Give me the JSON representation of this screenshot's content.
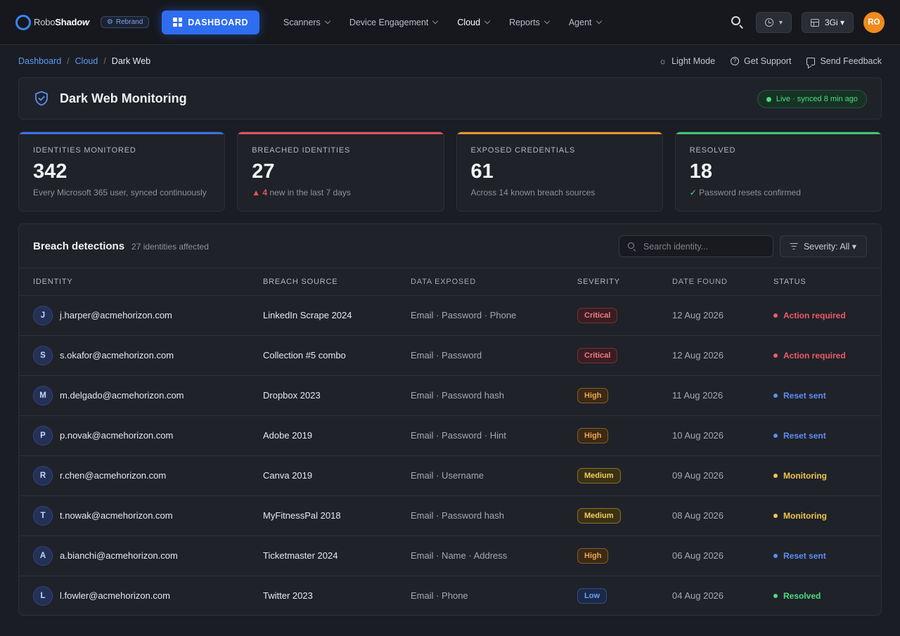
{
  "brand": {
    "logo_part1": "Robo",
    "logo_part2": "Shad",
    "logo_part3": "ow",
    "rebrand_label": "Rebrand",
    "dashboard_label": "DASHBOARD"
  },
  "nav": [
    {
      "label": "Scanners"
    },
    {
      "label": "Device Engagement"
    },
    {
      "label": "Cloud"
    },
    {
      "label": "Reports"
    },
    {
      "label": "Agent"
    }
  ],
  "topbar": {
    "history_caret": "▾",
    "workspace_label": "3Gi ▾",
    "avatar_initials": "RO"
  },
  "breadcrumb": {
    "items": [
      "Dashboard",
      "Cloud",
      "Dark Web"
    ],
    "separator": "/"
  },
  "utilities": {
    "light_mode": "Light Mode",
    "support": "Get Support",
    "feedback": "Send Feedback"
  },
  "page": {
    "title": "Dark Web Monitoring",
    "live_status": "Live · synced 8 min ago"
  },
  "stats": [
    {
      "label": "Identities monitored",
      "value": "342",
      "sub": "Every Microsoft 365 user, synced continuously",
      "accent": "#3b6fe8"
    },
    {
      "label": "Breached identities",
      "value": "27",
      "sub_prefix": "▲ 4",
      "sub": " new in the last 7 days",
      "accent": "#e5525c"
    },
    {
      "label": "Exposed credentials",
      "value": "61",
      "sub": "Across 14 known breach sources",
      "accent": "#f0952e"
    },
    {
      "label": "Resolved",
      "value": "18",
      "sub_prefix": "✓",
      "sub": " Password resets confirmed",
      "accent": "#3ec772"
    }
  ],
  "table": {
    "title": "Breach detections",
    "count": "27 identities affected",
    "search_placeholder": "Search identity...",
    "filter_label": "Severity: All ▾",
    "columns": [
      "IDENTITY",
      "BREACH SOURCE",
      "DATA EXPOSED",
      "SEVERITY",
      "DATE FOUND",
      "STATUS"
    ],
    "rows": [
      {
        "initial": "J",
        "identity": "j.harper@acmehorizon.com",
        "source": "LinkedIn Scrape 2024",
        "data": "Email · Password · Phone",
        "severity": "Critical",
        "date": "12 Aug 2026",
        "status": "Action required"
      },
      {
        "initial": "S",
        "identity": "s.okafor@acmehorizon.com",
        "source": "Collection #5 combo",
        "data": "Email · Password",
        "severity": "Critical",
        "date": "12 Aug 2026",
        "status": "Action required"
      },
      {
        "initial": "M",
        "identity": "m.delgado@acmehorizon.com",
        "source": "Dropbox 2023",
        "data": "Email · Password hash",
        "severity": "High",
        "date": "11 Aug 2026",
        "status": "Reset sent"
      },
      {
        "initial": "P",
        "identity": "p.novak@acmehorizon.com",
        "source": "Adobe 2019",
        "data": "Email · Password · Hint",
        "severity": "High",
        "date": "10 Aug 2026",
        "status": "Reset sent"
      },
      {
        "initial": "R",
        "identity": "r.chen@acmehorizon.com",
        "source": "Canva 2019",
        "data": "Email · Username",
        "severity": "Medium",
        "date": "09 Aug 2026",
        "status": "Monitoring"
      },
      {
        "initial": "T",
        "identity": "t.nowak@acmehorizon.com",
        "source": "MyFitnessPal 2018",
        "data": "Email · Password hash",
        "severity": "Medium",
        "date": "08 Aug 2026",
        "status": "Monitoring"
      },
      {
        "initial": "A",
        "identity": "a.bianchi@acmehorizon.com",
        "source": "Ticketmaster 2024",
        "data": "Email · Name · Address",
        "severity": "High",
        "date": "06 Aug 2026",
        "status": "Reset sent"
      },
      {
        "initial": "L",
        "identity": "l.fowler@acmehorizon.com",
        "source": "Twitter 2023",
        "data": "Email · Phone",
        "severity": "Low",
        "date": "04 Aug 2026",
        "status": "Resolved"
      }
    ]
  }
}
